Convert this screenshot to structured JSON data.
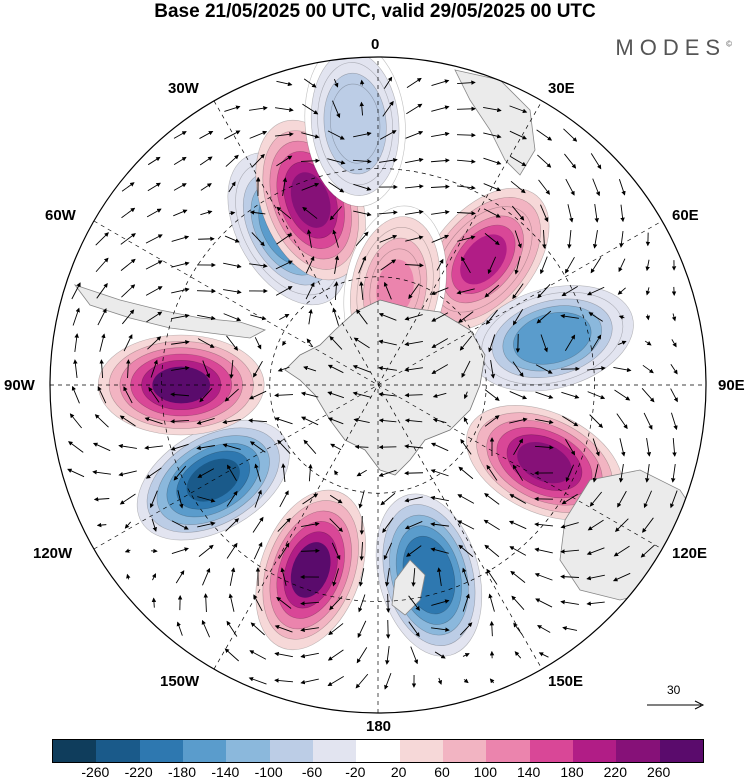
{
  "title": "Base 21/05/2025 00 UTC, valid 29/05/2025 00 UTC",
  "logo": "MODES",
  "logo_mark": "©",
  "longitude_labels": {
    "top": "0",
    "top_right": "30E",
    "right_upper": "60E",
    "right": "90E",
    "right_lower": "120E",
    "bottom_right": "150E",
    "bottom": "180",
    "bottom_left": "150W",
    "left_lower": "120W",
    "left": "90W",
    "left_upper": "60W",
    "top_left": "30W"
  },
  "reference_vector": "30",
  "colorbar": {
    "colors": [
      "#0f3d5c",
      "#1a5a8a",
      "#2e78b0",
      "#5a9ccc",
      "#8bb8dc",
      "#bccde6",
      "#e2e4f0",
      "#ffffff",
      "#f6d8d8",
      "#f2b4c2",
      "#eb84ad",
      "#d94797",
      "#b11d86",
      "#861178",
      "#5a0b6c"
    ],
    "labels": [
      "-260",
      "-220",
      "-180",
      "-140",
      "-100",
      "-60",
      "-20",
      "20",
      "60",
      "100",
      "140",
      "180",
      "220",
      "260"
    ]
  },
  "chart_data": {
    "type": "heatmap",
    "projection": "south polar stereographic",
    "contour_levels": [
      -260,
      -220,
      -180,
      -140,
      -100,
      -60,
      -20,
      20,
      60,
      100,
      140,
      180,
      220,
      260
    ],
    "reference_vector_magnitude": 30,
    "anomaly_centers": [
      {
        "name": "low-30W",
        "lon": -30,
        "value": -180
      },
      {
        "name": "high-20W",
        "lon": -20,
        "value": 220
      },
      {
        "name": "low-10W",
        "lon": -5,
        "value": -100
      },
      {
        "name": "high-40E",
        "lon": 40,
        "value": 180
      },
      {
        "name": "low-75E",
        "lon": 75,
        "value": -180
      },
      {
        "name": "high-115E",
        "lon": 115,
        "value": 220
      },
      {
        "name": "low-165E",
        "lon": 165,
        "value": -220
      },
      {
        "name": "high-160W",
        "lon": -160,
        "value": 260
      },
      {
        "name": "low-120W",
        "lon": -120,
        "value": -260
      },
      {
        "name": "high-90W",
        "lon": -90,
        "value": 260
      },
      {
        "name": "high-10E",
        "lon": 10,
        "value": 100
      }
    ]
  }
}
